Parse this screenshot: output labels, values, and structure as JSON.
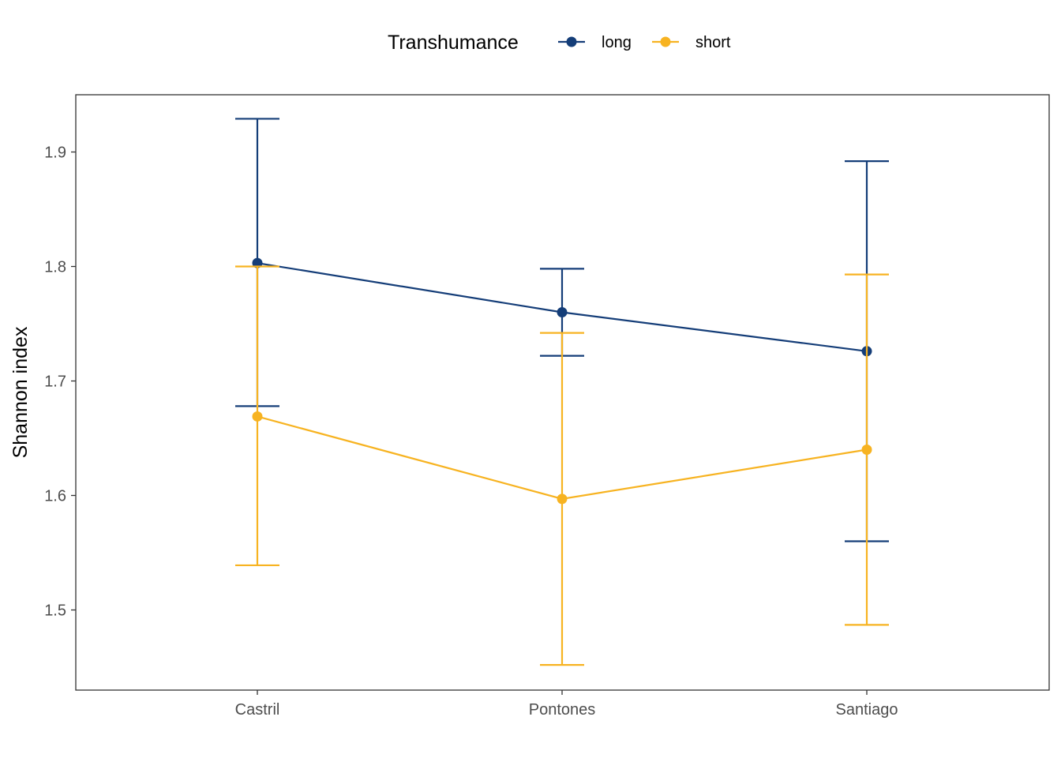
{
  "chart_data": {
    "type": "line",
    "ylabel": "Shannon index",
    "xlabel": "",
    "categories": [
      "Castril",
      "Pontones",
      "Santiago"
    ],
    "ylim": [
      1.43,
      1.95
    ],
    "yticks": [
      1.5,
      1.6,
      1.7,
      1.8,
      1.9
    ],
    "ytick_labels": [
      "1.5",
      "1.6",
      "1.7",
      "1.8",
      "1.9"
    ],
    "grid": false,
    "legend": {
      "title": "Transhumance",
      "position": "top",
      "entries": [
        "long",
        "short"
      ]
    },
    "series": [
      {
        "name": "long",
        "color": "#143d78",
        "values": [
          1.803,
          1.76,
          1.726
        ],
        "err_low": [
          1.678,
          1.722,
          1.56
        ],
        "err_high": [
          1.929,
          1.798,
          1.892
        ]
      },
      {
        "name": "short",
        "color": "#f7b321",
        "values": [
          1.669,
          1.597,
          1.64
        ],
        "err_low": [
          1.539,
          1.452,
          1.487
        ],
        "err_high": [
          1.8,
          1.742,
          1.793
        ]
      }
    ]
  }
}
